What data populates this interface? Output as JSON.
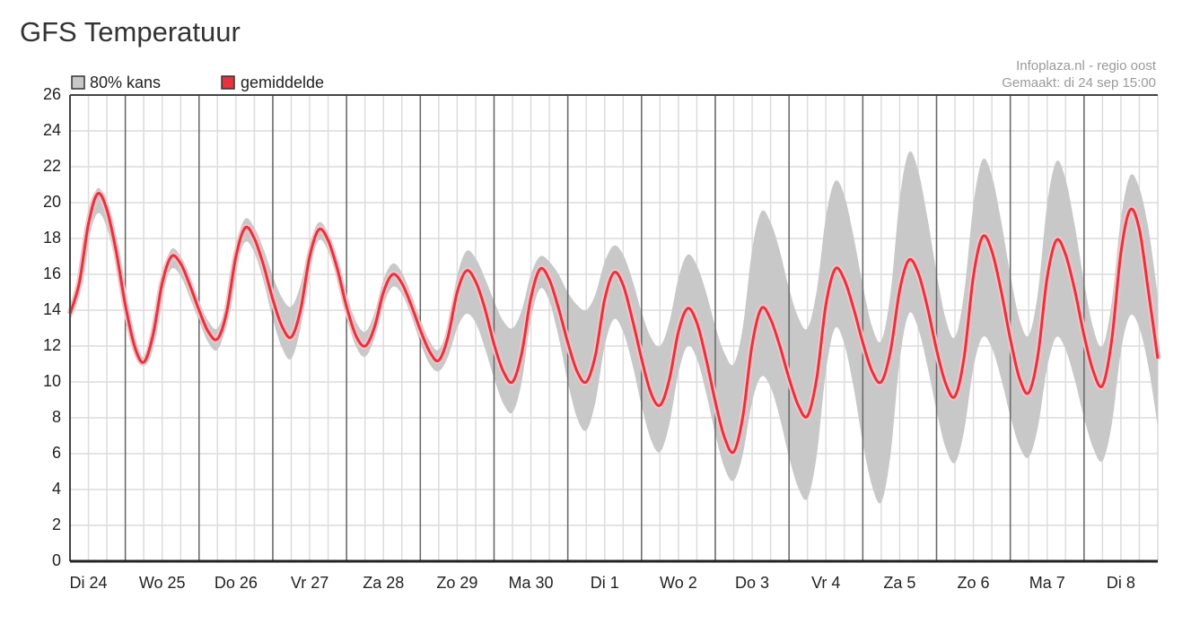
{
  "chart_data": {
    "type": "line",
    "title": "GFS Temperatuur",
    "source": "Infoplaza.nl - regio oost",
    "made": "Gemaakt: di 24 sep 15:00",
    "categories": [
      null,
      null,
      "Di 24",
      null,
      null,
      null,
      null,
      null,
      null,
      null,
      "Wo 25",
      null,
      null,
      null,
      null,
      null,
      null,
      null,
      "Do 26",
      null,
      null,
      null,
      null,
      null,
      null,
      null,
      "Vr 27",
      null,
      null,
      null,
      null,
      null,
      null,
      null,
      "Za 28",
      null,
      null,
      null,
      null,
      null,
      null,
      null,
      "Zo 29",
      null,
      null,
      null,
      null,
      null,
      null,
      null,
      "Ma 30",
      null,
      null,
      null,
      null,
      null,
      null,
      null,
      "Di 1",
      null,
      null,
      null,
      null,
      null,
      null,
      null,
      "Wo 2",
      null,
      null,
      null,
      null,
      null,
      null,
      null,
      "Do 3",
      null,
      null,
      null,
      null,
      null,
      null,
      null,
      "Vr 4",
      null,
      null,
      null,
      null,
      null,
      null,
      null,
      "Za 5",
      null,
      null,
      null,
      null,
      null,
      null,
      null,
      "Zo 6",
      null,
      null,
      null,
      null,
      null,
      null,
      null,
      "Ma 7",
      null,
      null,
      null,
      null,
      null,
      null,
      null,
      "Di 8",
      null,
      null,
      null,
      null
    ],
    "band": {
      "name": "80% kans",
      "color": "#c8c8c8",
      "low": [
        13.4,
        14.9,
        17.9,
        19.4,
        18.6,
        16.5,
        13.8,
        11.7,
        10.9,
        12.3,
        14.9,
        16.3,
        15.9,
        14.7,
        13.4,
        12.2,
        11.8,
        13.3,
        16.3,
        17.8,
        17.2,
        15.6,
        13.5,
        11.9,
        11.3,
        13.0,
        16.3,
        17.9,
        17.3,
        15.7,
        13.6,
        12.0,
        11.4,
        12.4,
        14.3,
        15.3,
        14.9,
        13.7,
        12.2,
        11.0,
        10.6,
        11.4,
        13.0,
        13.8,
        13.3,
        11.9,
        10.2,
        8.8,
        8.3,
        10.0,
        13.5,
        15.2,
        14.5,
        12.5,
        10.0,
        8.0,
        7.3,
        8.9,
        12.0,
        13.5,
        12.8,
        11.0,
        8.7,
        6.8,
        6.1,
        7.6,
        10.5,
        12.0,
        11.3,
        9.4,
        7.1,
        5.2,
        4.5,
        6.0,
        8.9,
        10.3,
        9.7,
        8.0,
        5.8,
        4.1,
        3.5,
        5.9,
        10.6,
        13.0,
        12.1,
        9.7,
        6.6,
        4.2,
        3.3,
        5.9,
        11.2,
        13.8,
        13.0,
        10.9,
        8.4,
        6.3,
        5.5,
        7.3,
        10.8,
        12.5,
        11.9,
        10.2,
        8.1,
        6.4,
        5.8,
        7.5,
        10.8,
        12.5,
        11.8,
        10.1,
        8.0,
        6.3,
        5.6,
        7.6,
        11.7,
        13.7,
        13.0,
        10.8,
        7.5
      ],
      "high": [
        14.2,
        15.9,
        19.2,
        20.8,
        19.9,
        17.6,
        14.6,
        12.3,
        11.4,
        12.9,
        15.9,
        17.4,
        17.0,
        15.9,
        14.5,
        13.4,
        13.0,
        14.5,
        17.6,
        19.1,
        18.6,
        17.4,
        15.9,
        14.7,
        14.2,
        15.4,
        17.7,
        18.9,
        18.3,
        16.8,
        14.9,
        13.4,
        12.8,
        13.8,
        15.7,
        16.6,
        16.1,
        14.9,
        13.5,
        12.3,
        11.8,
        13.2,
        15.9,
        17.3,
        16.9,
        15.8,
        14.5,
        13.4,
        13.0,
        14.0,
        16.0,
        17.0,
        16.7,
        16.0,
        15.0,
        14.3,
        14.0,
        14.9,
        16.7,
        17.6,
        17.1,
        15.7,
        13.9,
        12.5,
        12.0,
        13.3,
        15.8,
        17.1,
        16.5,
        15.0,
        13.1,
        11.6,
        11.0,
        13.1,
        17.4,
        19.5,
        18.9,
        17.3,
        15.2,
        13.6,
        13.0,
        15.1,
        19.2,
        21.2,
        20.4,
        18.1,
        15.4,
        13.1,
        12.3,
        14.9,
        20.2,
        22.8,
        21.8,
        19.2,
        16.1,
        13.5,
        12.5,
        15.0,
        19.9,
        22.4,
        21.5,
        19.0,
        16.0,
        13.5,
        12.6,
        15.0,
        19.9,
        22.3,
        21.3,
        18.7,
        15.6,
        13.0,
        12.0,
        14.4,
        19.1,
        21.5,
        20.8,
        18.5,
        14.8
      ]
    },
    "series": [
      {
        "name": "gemiddelde",
        "color": "#e5323e",
        "values": [
          13.8,
          15.5,
          18.8,
          20.5,
          19.6,
          17.3,
          14.3,
          12.0,
          11.1,
          12.6,
          15.5,
          17.0,
          16.6,
          15.4,
          14.0,
          12.8,
          12.4,
          13.9,
          17.0,
          18.6,
          18.0,
          16.5,
          14.6,
          13.1,
          12.5,
          14.0,
          17.0,
          18.5,
          17.9,
          16.3,
          14.2,
          12.6,
          12.0,
          13.0,
          15.0,
          16.0,
          15.5,
          14.3,
          12.9,
          11.7,
          11.2,
          12.5,
          15.0,
          16.2,
          15.6,
          14.1,
          12.1,
          10.6,
          10.0,
          11.6,
          14.7,
          16.3,
          15.7,
          14.1,
          12.2,
          10.6,
          10.0,
          11.5,
          14.6,
          16.1,
          15.4,
          13.5,
          11.3,
          9.4,
          8.7,
          10.1,
          12.8,
          14.1,
          13.3,
          11.3,
          8.9,
          6.9,
          6.1,
          8.1,
          12.1,
          14.1,
          13.5,
          12.0,
          10.2,
          8.7,
          8.1,
          10.2,
          14.3,
          16.3,
          15.7,
          14.1,
          12.2,
          10.6,
          10.0,
          11.7,
          15.1,
          16.8,
          16.1,
          14.2,
          11.8,
          9.9,
          9.2,
          11.4,
          15.9,
          18.1,
          17.3,
          15.1,
          12.4,
          10.2,
          9.4,
          11.5,
          15.8,
          17.9,
          17.1,
          15.1,
          12.6,
          10.6,
          9.8,
          12.3,
          17.2,
          19.6,
          18.5,
          15.0,
          11.3
        ]
      }
    ],
    "ylim": [
      0,
      26
    ],
    "yticks": [
      0,
      2,
      4,
      6,
      8,
      10,
      12,
      14,
      16,
      18,
      20,
      22,
      24,
      26
    ],
    "grid": true
  }
}
